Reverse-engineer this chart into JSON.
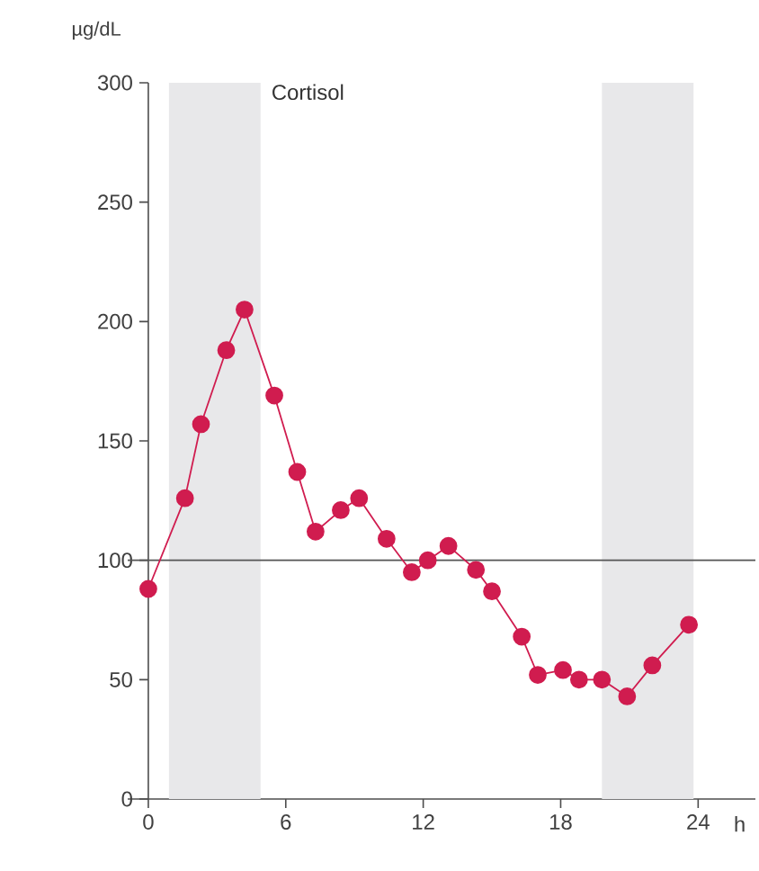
{
  "chart_data": {
    "type": "line",
    "title": "Cortisol",
    "xlabel": "h",
    "ylabel": "µg/dL",
    "x": [
      0,
      1.6,
      2.3,
      3.4,
      4.2,
      5.5,
      6.5,
      7.3,
      8.4,
      9.2,
      10.4,
      11.5,
      12.2,
      13.1,
      14.3,
      15,
      16.3,
      17,
      18.1,
      18.8,
      19.8,
      20.9,
      22,
      23.6
    ],
    "values": [
      88,
      126,
      157,
      188,
      205,
      169,
      137,
      112,
      121,
      126,
      109,
      95,
      100,
      106,
      96,
      87,
      68,
      52,
      54,
      50,
      50,
      43,
      56,
      73
    ],
    "color": "#d01c4f",
    "marker": "circle",
    "line_style": "solid",
    "xlim": [
      -0.9,
      26.5
    ],
    "ylim": [
      0,
      300
    ],
    "xticks": [
      0,
      6,
      12,
      18,
      24
    ],
    "yticks": [
      0,
      50,
      100,
      150,
      200,
      250,
      300
    ],
    "ref_lines": [
      {
        "axis": "y",
        "value": 100,
        "color": "#555555"
      }
    ],
    "bands": [
      {
        "axis": "x",
        "from": 0.9,
        "to": 4.9,
        "color": "#e8e8ea"
      },
      {
        "axis": "x",
        "from": 19.8,
        "to": 23.8,
        "color": "#e8e8ea"
      }
    ]
  }
}
